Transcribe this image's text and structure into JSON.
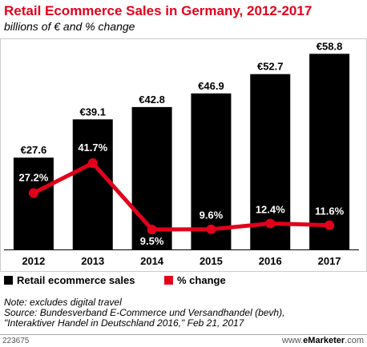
{
  "header": {
    "title": "Retail Ecommerce Sales in Germany, 2012-2017",
    "subtitle": "billions of € and % change"
  },
  "chart_data": {
    "type": "bar",
    "categories": [
      "2012",
      "2013",
      "2014",
      "2015",
      "2016",
      "2017"
    ],
    "series": [
      {
        "name": "Retail ecommerce sales",
        "type": "bar",
        "values": [
          27.6,
          39.1,
          42.8,
          46.9,
          52.7,
          58.8
        ],
        "labels": [
          "€27.6",
          "€39.1",
          "€42.8",
          "€46.9",
          "€52.7",
          "€58.8"
        ],
        "color": "#000000"
      },
      {
        "name": "% change",
        "type": "line",
        "values": [
          27.2,
          41.7,
          9.5,
          9.6,
          12.4,
          11.6
        ],
        "labels": [
          "27.2%",
          "41.7%",
          "9.5%",
          "9.6%",
          "12.4%",
          "11.6%"
        ],
        "color": "#e3001b"
      }
    ],
    "legend_position": "bottom-left",
    "grid": false
  },
  "notes": {
    "line1": "Note: excludes digital travel",
    "line2": "Source: Bundesverband E-Commerce und Versandhandel (bevh),",
    "line3": "\"Interaktiver Handel in Deutschland 2016,\" Feb 21, 2017"
  },
  "footer": {
    "chart_id": "223675",
    "brand_prefix": "www.",
    "brand_name": "eMarketer",
    "brand_suffix": ".com"
  }
}
